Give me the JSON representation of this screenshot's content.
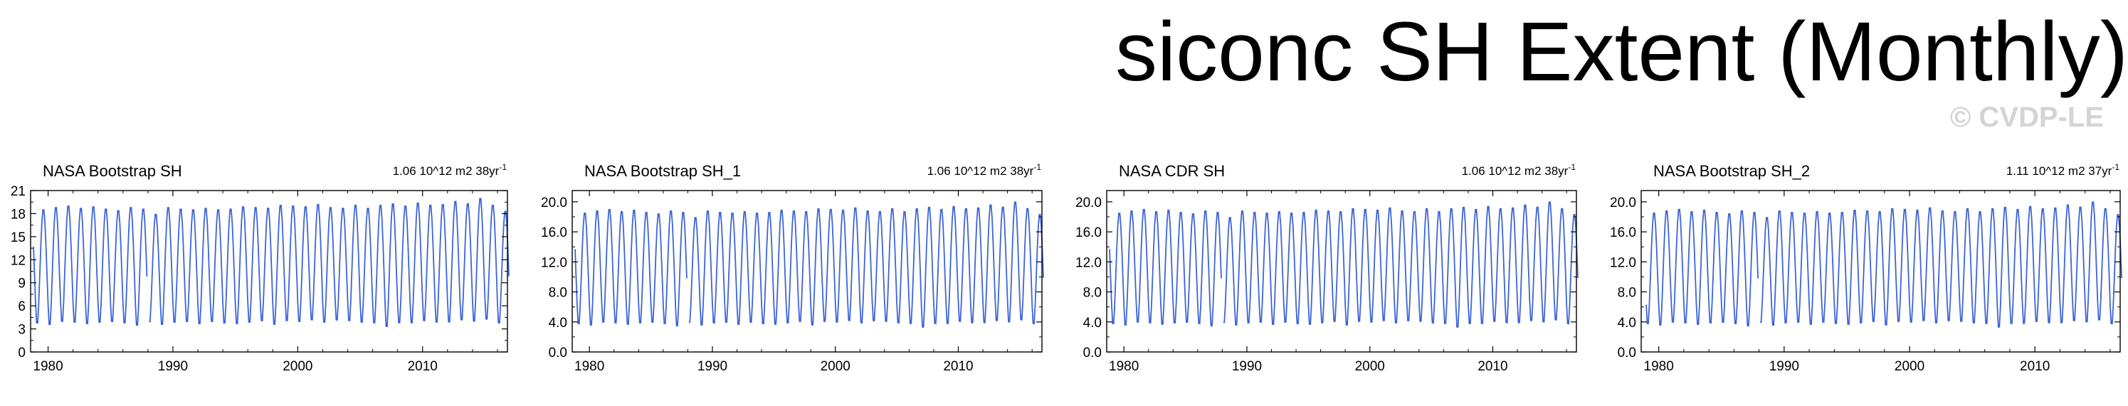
{
  "header": {
    "title": "siconc SH Extent (Monthly)",
    "credit": "© CVDP-LE"
  },
  "colors": {
    "line": "#3d64d8",
    "axis": "#000000",
    "credit": "#d4d4d4"
  },
  "chart_data": [
    {
      "type": "line",
      "title": "NASA Bootstrap SH",
      "right_title": "1.06 10^12 m2 38yr",
      "right_title_sup": "-1",
      "xlabel": "",
      "ylabel": "",
      "xlim": [
        1978.6,
        2016.8
      ],
      "ylim": [
        0,
        21
      ],
      "yticks": [
        0,
        3,
        6,
        9,
        12,
        15,
        18,
        21
      ],
      "ytick_labels": [
        "0",
        "3",
        "6",
        "9",
        "12",
        "15",
        "18",
        "21"
      ],
      "xticks": [
        1980,
        1990,
        2000,
        2010
      ],
      "xtick_labels": [
        "1980",
        "1990",
        "2000",
        "2010"
      ],
      "grid": false,
      "series": [
        {
          "start": 1978.833,
          "end": 2016.917,
          "gap": [
            1987.917,
            1988.0
          ],
          "minima": [
            3.3,
            3.1,
            3.5,
            3.4,
            3.2,
            3.4,
            3.5,
            3.3,
            3.0,
            3.5,
            3.1,
            3.4,
            3.5,
            3.2,
            3.5,
            3.3,
            3.2,
            3.4,
            3.6,
            3.1,
            3.6,
            3.5,
            3.7,
            3.4,
            3.7,
            3.6,
            3.4,
            3.3,
            2.8,
            3.3,
            3.3,
            3.6,
            3.4,
            3.4,
            3.7,
            3.5,
            3.8,
            3.3
          ],
          "maxima": [
            18.7,
            19.0,
            19.2,
            18.9,
            19.1,
            18.8,
            18.6,
            19.0,
            18.8,
            18.1,
            19.0,
            18.8,
            18.7,
            18.9,
            18.7,
            18.8,
            19.1,
            19.0,
            18.9,
            19.3,
            19.2,
            19.1,
            19.4,
            19.0,
            18.9,
            19.3,
            18.9,
            19.3,
            19.5,
            19.2,
            19.6,
            19.3,
            19.4,
            19.8,
            19.5,
            20.2,
            19.3,
            18.5
          ]
        }
      ]
    },
    {
      "type": "line",
      "title": "NASA Bootstrap SH_1",
      "right_title": "1.06 10^12 m2 38yr",
      "right_title_sup": "-1",
      "xlabel": "",
      "ylabel": "",
      "xlim": [
        1978.6,
        2016.8
      ],
      "ylim": [
        0,
        21.5
      ],
      "yticks": [
        0,
        4,
        8,
        12,
        16,
        20
      ],
      "ytick_labels": [
        "0.0",
        "4.0",
        "8.0",
        "12.0",
        "16.0",
        "20.0"
      ],
      "xticks": [
        1980,
        1990,
        2000,
        2010
      ],
      "xtick_labels": [
        "1980",
        "1990",
        "2000",
        "2010"
      ],
      "grid": false,
      "series": [
        {
          "start": 1978.833,
          "end": 2016.917,
          "gap": [
            1987.917,
            1988.0
          ],
          "minima": [
            3.3,
            3.1,
            3.5,
            3.4,
            3.2,
            3.4,
            3.5,
            3.3,
            3.0,
            3.5,
            3.1,
            3.4,
            3.5,
            3.2,
            3.5,
            3.3,
            3.2,
            3.4,
            3.6,
            3.1,
            3.6,
            3.5,
            3.7,
            3.4,
            3.7,
            3.6,
            3.4,
            3.3,
            2.8,
            3.3,
            3.3,
            3.6,
            3.4,
            3.4,
            3.7,
            3.5,
            3.8,
            3.3
          ],
          "maxima": [
            18.7,
            19.0,
            19.2,
            18.9,
            19.1,
            18.8,
            18.6,
            19.0,
            18.8,
            18.1,
            19.0,
            18.8,
            18.7,
            18.9,
            18.7,
            18.8,
            19.1,
            19.0,
            18.9,
            19.3,
            19.2,
            19.1,
            19.4,
            19.0,
            18.9,
            19.3,
            18.9,
            19.3,
            19.5,
            19.2,
            19.6,
            19.3,
            19.4,
            19.8,
            19.5,
            20.2,
            19.3,
            18.5
          ]
        }
      ]
    },
    {
      "type": "line",
      "title": "NASA CDR SH",
      "right_title": "1.06 10^12 m2 38yr",
      "right_title_sup": "-1",
      "xlabel": "",
      "ylabel": "",
      "xlim": [
        1978.6,
        2016.8
      ],
      "ylim": [
        0,
        21.5
      ],
      "yticks": [
        0,
        4,
        8,
        12,
        16,
        20
      ],
      "ytick_labels": [
        "0.0",
        "4.0",
        "8.0",
        "12.0",
        "16.0",
        "20.0"
      ],
      "xticks": [
        1980,
        1990,
        2000,
        2010
      ],
      "xtick_labels": [
        "1980",
        "1990",
        "2000",
        "2010"
      ],
      "grid": false,
      "series": [
        {
          "start": 1978.833,
          "end": 2016.917,
          "gap": [
            1987.917,
            1988.0
          ],
          "minima": [
            3.3,
            3.1,
            3.5,
            3.4,
            3.2,
            3.4,
            3.5,
            3.3,
            3.0,
            3.5,
            3.1,
            3.4,
            3.5,
            3.2,
            3.5,
            3.3,
            3.2,
            3.4,
            3.6,
            3.1,
            3.6,
            3.5,
            3.7,
            3.4,
            3.7,
            3.6,
            3.4,
            3.3,
            2.8,
            3.3,
            3.3,
            3.6,
            3.4,
            3.4,
            3.7,
            3.5,
            3.8,
            3.3
          ],
          "maxima": [
            18.7,
            19.0,
            19.2,
            18.9,
            19.1,
            18.8,
            18.6,
            19.0,
            18.8,
            18.1,
            19.0,
            18.8,
            18.7,
            18.9,
            18.7,
            18.8,
            19.1,
            19.0,
            18.9,
            19.3,
            19.2,
            19.1,
            19.4,
            19.0,
            18.9,
            19.3,
            18.9,
            19.3,
            19.5,
            19.2,
            19.6,
            19.3,
            19.4,
            19.8,
            19.5,
            20.2,
            19.3,
            18.5
          ]
        }
      ]
    },
    {
      "type": "line",
      "title": "NASA Bootstrap SH_2",
      "right_title": "1.11 10^12 m2 37yr",
      "right_title_sup": "-1",
      "xlabel": "",
      "ylabel": "",
      "xlim": [
        1978.6,
        2016.8
      ],
      "ylim": [
        0,
        21.5
      ],
      "yticks": [
        0,
        4,
        8,
        12,
        16,
        20
      ],
      "ytick_labels": [
        "0.0",
        "4.0",
        "8.0",
        "12.0",
        "16.0",
        "20.0"
      ],
      "xticks": [
        1980,
        1990,
        2000,
        2010
      ],
      "xtick_labels": [
        "1980",
        "1990",
        "2000",
        "2010"
      ],
      "grid": false,
      "series": [
        {
          "start": 1979.0,
          "end": 2016.917,
          "gap": [
            1987.917,
            1988.0
          ],
          "minima": [
            3.3,
            3.1,
            3.5,
            3.4,
            3.2,
            3.4,
            3.5,
            3.3,
            3.0,
            3.5,
            3.1,
            3.4,
            3.5,
            3.2,
            3.5,
            3.3,
            3.2,
            3.4,
            3.6,
            3.1,
            3.6,
            3.5,
            3.7,
            3.4,
            3.7,
            3.6,
            3.4,
            3.3,
            2.8,
            3.3,
            3.3,
            3.6,
            3.4,
            3.4,
            3.7,
            3.5,
            3.8,
            3.3
          ],
          "maxima": [
            18.7,
            19.0,
            19.2,
            18.9,
            19.1,
            18.8,
            18.6,
            19.0,
            18.8,
            18.1,
            19.0,
            18.8,
            18.7,
            18.9,
            18.7,
            18.8,
            19.1,
            19.0,
            18.9,
            19.3,
            19.2,
            19.1,
            19.4,
            19.0,
            18.9,
            19.3,
            18.9,
            19.3,
            19.5,
            19.2,
            19.6,
            19.3,
            19.4,
            19.8,
            19.5,
            20.2,
            19.3,
            18.5
          ]
        }
      ]
    }
  ]
}
